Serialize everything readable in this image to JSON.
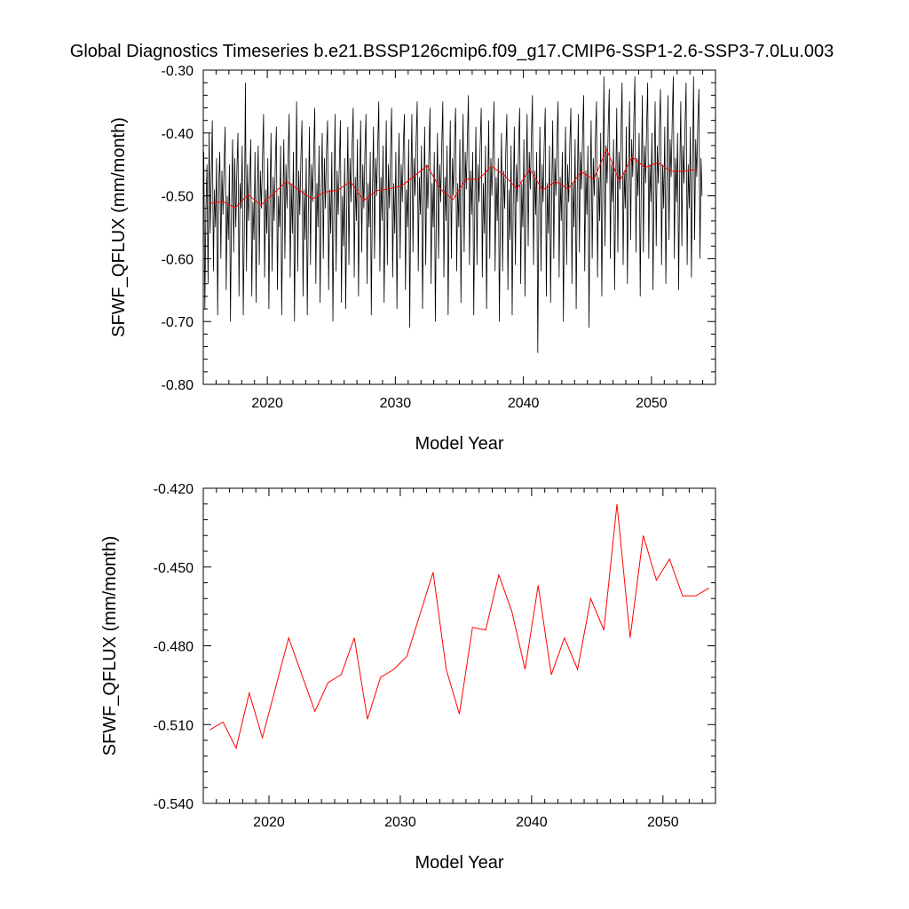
{
  "page_title": "Global Diagnostics Timeseries b.e21.BSSP126cmip6.f09_g17.CMIP6-SSP1-2.6-SSP3-7.0Lu.003",
  "colors": {
    "monthly": "#000000",
    "annual": "#ff0000"
  },
  "chart_data": [
    {
      "type": "line",
      "title": "Global Diagnostics Timeseries b.e21.BSSP126cmip6.f09_g17.CMIP6-SSP1-2.6-SSP3-7.0Lu.003",
      "xlabel": "Model Year",
      "ylabel": "SFWF_QFLUX (mm/month)",
      "xlim": [
        2015,
        2055
      ],
      "ylim": [
        -0.8,
        -0.3
      ],
      "xticks": [
        2020,
        2030,
        2040,
        2050
      ],
      "xtick_labels": [
        "2020",
        "2030",
        "2040",
        "2050"
      ],
      "yticks": [
        -0.8,
        -0.7,
        -0.6,
        -0.5,
        -0.4,
        -0.3
      ],
      "ytick_labels": [
        "-0.80",
        "-0.70",
        "-0.60",
        "-0.50",
        "-0.40",
        "-0.30"
      ],
      "grid": false,
      "series": [
        {
          "color": "#000000",
          "x_start": 2015.04,
          "x_step": 0.08333,
          "values": [
            -0.43,
            -0.68,
            -0.52,
            -0.45,
            -0.64,
            -0.4,
            -0.56,
            -0.47,
            -0.38,
            -0.62,
            -0.49,
            -0.55,
            -0.44,
            -0.69,
            -0.48,
            -0.43,
            -0.6,
            -0.46,
            -0.53,
            -0.45,
            -0.39,
            -0.65,
            -0.5,
            -0.57,
            -0.45,
            -0.7,
            -0.52,
            -0.41,
            -0.59,
            -0.44,
            -0.55,
            -0.46,
            -0.4,
            -0.66,
            -0.48,
            -0.52,
            -0.42,
            -0.69,
            -0.55,
            -0.32,
            -0.62,
            -0.45,
            -0.54,
            -0.48,
            -0.41,
            -0.66,
            -0.51,
            -0.57,
            -0.43,
            -0.67,
            -0.5,
            -0.42,
            -0.61,
            -0.46,
            -0.52,
            -0.44,
            -0.37,
            -0.63,
            -0.49,
            -0.56,
            -0.44,
            -0.68,
            -0.51,
            -0.4,
            -0.62,
            -0.47,
            -0.54,
            -0.45,
            -0.39,
            -0.65,
            -0.5,
            -0.55,
            -0.42,
            -0.69,
            -0.53,
            -0.41,
            -0.6,
            -0.45,
            -0.52,
            -0.44,
            -0.37,
            -0.63,
            -0.48,
            -0.56,
            -0.43,
            -0.7,
            -0.5,
            -0.35,
            -0.62,
            -0.46,
            -0.53,
            -0.44,
            -0.38,
            -0.66,
            -0.49,
            -0.57,
            -0.44,
            -0.69,
            -0.52,
            -0.39,
            -0.61,
            -0.45,
            -0.51,
            -0.43,
            -0.36,
            -0.64,
            -0.48,
            -0.55,
            -0.42,
            -0.67,
            -0.5,
            -0.4,
            -0.6,
            -0.44,
            -0.52,
            -0.43,
            -0.38,
            -0.65,
            -0.49,
            -0.56,
            -0.43,
            -0.7,
            -0.51,
            -0.37,
            -0.62,
            -0.46,
            -0.53,
            -0.45,
            -0.38,
            -0.67,
            -0.5,
            -0.58,
            -0.44,
            -0.68,
            -0.52,
            -0.39,
            -0.61,
            -0.44,
            -0.51,
            -0.42,
            -0.36,
            -0.63,
            -0.47,
            -0.54,
            -0.41,
            -0.66,
            -0.49,
            -0.38,
            -0.59,
            -0.45,
            -0.52,
            -0.43,
            -0.37,
            -0.64,
            -0.48,
            -0.55,
            -0.43,
            -0.69,
            -0.5,
            -0.39,
            -0.6,
            -0.44,
            -0.5,
            -0.42,
            -0.35,
            -0.62,
            -0.47,
            -0.54,
            -0.42,
            -0.67,
            -0.51,
            -0.38,
            -0.61,
            -0.45,
            -0.52,
            -0.43,
            -0.36,
            -0.63,
            -0.48,
            -0.56,
            -0.43,
            -0.68,
            -0.5,
            -0.4,
            -0.6,
            -0.45,
            -0.51,
            -0.42,
            -0.37,
            -0.65,
            -0.49,
            -0.55,
            -0.41,
            -0.71,
            -0.49,
            -0.37,
            -0.59,
            -0.44,
            -0.5,
            -0.41,
            -0.35,
            -0.62,
            -0.47,
            -0.53,
            -0.42,
            -0.68,
            -0.51,
            -0.39,
            -0.61,
            -0.45,
            -0.52,
            -0.43,
            -0.36,
            -0.64,
            -0.48,
            -0.55,
            -0.43,
            -0.7,
            -0.52,
            -0.4,
            -0.6,
            -0.45,
            -0.51,
            -0.42,
            -0.35,
            -0.63,
            -0.47,
            -0.54,
            -0.42,
            -0.69,
            -0.5,
            -0.38,
            -0.6,
            -0.44,
            -0.5,
            -0.41,
            -0.36,
            -0.62,
            -0.48,
            -0.55,
            -0.41,
            -0.67,
            -0.49,
            -0.37,
            -0.59,
            -0.43,
            -0.49,
            -0.41,
            -0.34,
            -0.61,
            -0.46,
            -0.53,
            -0.43,
            -0.69,
            -0.51,
            -0.39,
            -0.61,
            -0.45,
            -0.51,
            -0.42,
            -0.36,
            -0.63,
            -0.48,
            -0.56,
            -0.42,
            -0.68,
            -0.5,
            -0.38,
            -0.6,
            -0.44,
            -0.5,
            -0.42,
            -0.35,
            -0.62,
            -0.47,
            -0.54,
            -0.44,
            -0.7,
            -0.52,
            -0.4,
            -0.62,
            -0.46,
            -0.52,
            -0.43,
            -0.37,
            -0.65,
            -0.49,
            -0.57,
            -0.42,
            -0.69,
            -0.51,
            -0.39,
            -0.61,
            -0.45,
            -0.51,
            -0.42,
            -0.36,
            -0.64,
            -0.48,
            -0.55,
            -0.41,
            -0.66,
            -0.49,
            -0.37,
            -0.58,
            -0.43,
            -0.49,
            -0.41,
            -0.34,
            -0.61,
            -0.46,
            -0.53,
            -0.43,
            -0.75,
            -0.52,
            -0.39,
            -0.62,
            -0.45,
            -0.51,
            -0.42,
            -0.36,
            -0.66,
            -0.48,
            -0.56,
            -0.42,
            -0.67,
            -0.5,
            -0.38,
            -0.6,
            -0.44,
            -0.5,
            -0.41,
            -0.35,
            -0.63,
            -0.47,
            -0.54,
            -0.43,
            -0.7,
            -0.51,
            -0.39,
            -0.61,
            -0.45,
            -0.51,
            -0.42,
            -0.36,
            -0.64,
            -0.48,
            -0.55,
            -0.41,
            -0.68,
            -0.49,
            -0.37,
            -0.59,
            -0.43,
            -0.49,
            -0.4,
            -0.34,
            -0.62,
            -0.46,
            -0.53,
            -0.42,
            -0.71,
            -0.5,
            -0.38,
            -0.6,
            -0.44,
            -0.5,
            -0.41,
            -0.35,
            -0.63,
            -0.47,
            -0.54,
            -0.4,
            -0.66,
            -0.48,
            -0.31,
            -0.58,
            -0.42,
            -0.48,
            -0.39,
            -0.33,
            -0.6,
            -0.45,
            -0.51,
            -0.41,
            -0.65,
            -0.49,
            -0.36,
            -0.59,
            -0.43,
            -0.49,
            -0.4,
            -0.32,
            -0.61,
            -0.46,
            -0.52,
            -0.39,
            -0.64,
            -0.47,
            -0.35,
            -0.57,
            -0.41,
            -0.47,
            -0.38,
            -0.31,
            -0.59,
            -0.44,
            -0.5,
            -0.4,
            -0.66,
            -0.48,
            -0.34,
            -0.59,
            -0.42,
            -0.48,
            -0.39,
            -0.32,
            -0.6,
            -0.45,
            -0.51,
            -0.4,
            -0.65,
            -0.47,
            -0.35,
            -0.58,
            -0.42,
            -0.48,
            -0.39,
            -0.33,
            -0.61,
            -0.45,
            -0.52,
            -0.39,
            -0.64,
            -0.48,
            -0.34,
            -0.57,
            -0.41,
            -0.47,
            -0.38,
            -0.31,
            -0.6,
            -0.44,
            -0.51,
            -0.4,
            -0.65,
            -0.47,
            -0.35,
            -0.58,
            -0.42,
            -0.48,
            -0.39,
            -0.32,
            -0.61,
            -0.45,
            -0.52,
            -0.39,
            -0.63,
            -0.46,
            -0.31,
            -0.57,
            -0.41,
            -0.47,
            -0.38,
            -0.33,
            -0.6,
            -0.44,
            -0.5
          ]
        },
        {
          "color": "#ff0000",
          "x": [
            2015.5,
            2016.5,
            2017.5,
            2018.5,
            2019.5,
            2020.5,
            2021.5,
            2022.5,
            2023.5,
            2024.5,
            2025.5,
            2026.5,
            2027.5,
            2028.5,
            2029.5,
            2030.5,
            2031.5,
            2032.5,
            2033.5,
            2034.5,
            2035.5,
            2036.5,
            2037.5,
            2038.5,
            2039.5,
            2040.5,
            2041.5,
            2042.5,
            2043.5,
            2044.5,
            2045.5,
            2046.5,
            2047.5,
            2048.5,
            2049.5,
            2050.5,
            2051.5,
            2052.5,
            2053.5
          ],
          "values": [
            -0.512,
            -0.509,
            -0.519,
            -0.498,
            -0.515,
            -0.496,
            -0.477,
            -0.491,
            -0.505,
            -0.494,
            -0.491,
            -0.477,
            -0.508,
            -0.492,
            -0.489,
            -0.484,
            -0.468,
            -0.452,
            -0.489,
            -0.506,
            -0.473,
            -0.474,
            -0.453,
            -0.467,
            -0.489,
            -0.457,
            -0.491,
            -0.477,
            -0.489,
            -0.462,
            -0.474,
            -0.426,
            -0.477,
            -0.438,
            -0.455,
            -0.447,
            -0.461,
            -0.461,
            -0.458
          ]
        }
      ]
    },
    {
      "type": "line",
      "xlabel": "Model Year",
      "ylabel": "SFWF_QFLUX (mm/month)",
      "xlim": [
        2015,
        2054
      ],
      "ylim": [
        -0.54,
        -0.42
      ],
      "xticks": [
        2020,
        2030,
        2040,
        2050
      ],
      "xtick_labels": [
        "2020",
        "2030",
        "2040",
        "2050"
      ],
      "yticks": [
        -0.54,
        -0.51,
        -0.48,
        -0.45,
        -0.42
      ],
      "ytick_labels": [
        "-0.540",
        "-0.510",
        "-0.480",
        "-0.450",
        "-0.420"
      ],
      "grid": false,
      "series": [
        {
          "color": "#ff0000",
          "x": [
            2015.5,
            2016.5,
            2017.5,
            2018.5,
            2019.5,
            2020.5,
            2021.5,
            2022.5,
            2023.5,
            2024.5,
            2025.5,
            2026.5,
            2027.5,
            2028.5,
            2029.5,
            2030.5,
            2031.5,
            2032.5,
            2033.5,
            2034.5,
            2035.5,
            2036.5,
            2037.5,
            2038.5,
            2039.5,
            2040.5,
            2041.5,
            2042.5,
            2043.5,
            2044.5,
            2045.5,
            2046.5,
            2047.5,
            2048.5,
            2049.5,
            2050.5,
            2051.5,
            2052.5,
            2053.5
          ],
          "values": [
            -0.512,
            -0.509,
            -0.519,
            -0.498,
            -0.515,
            -0.496,
            -0.477,
            -0.491,
            -0.505,
            -0.494,
            -0.491,
            -0.477,
            -0.508,
            -0.492,
            -0.489,
            -0.484,
            -0.468,
            -0.452,
            -0.489,
            -0.506,
            -0.473,
            -0.474,
            -0.453,
            -0.467,
            -0.489,
            -0.457,
            -0.491,
            -0.477,
            -0.489,
            -0.462,
            -0.474,
            -0.426,
            -0.477,
            -0.438,
            -0.455,
            -0.447,
            -0.461,
            -0.461,
            -0.458
          ]
        }
      ]
    }
  ]
}
